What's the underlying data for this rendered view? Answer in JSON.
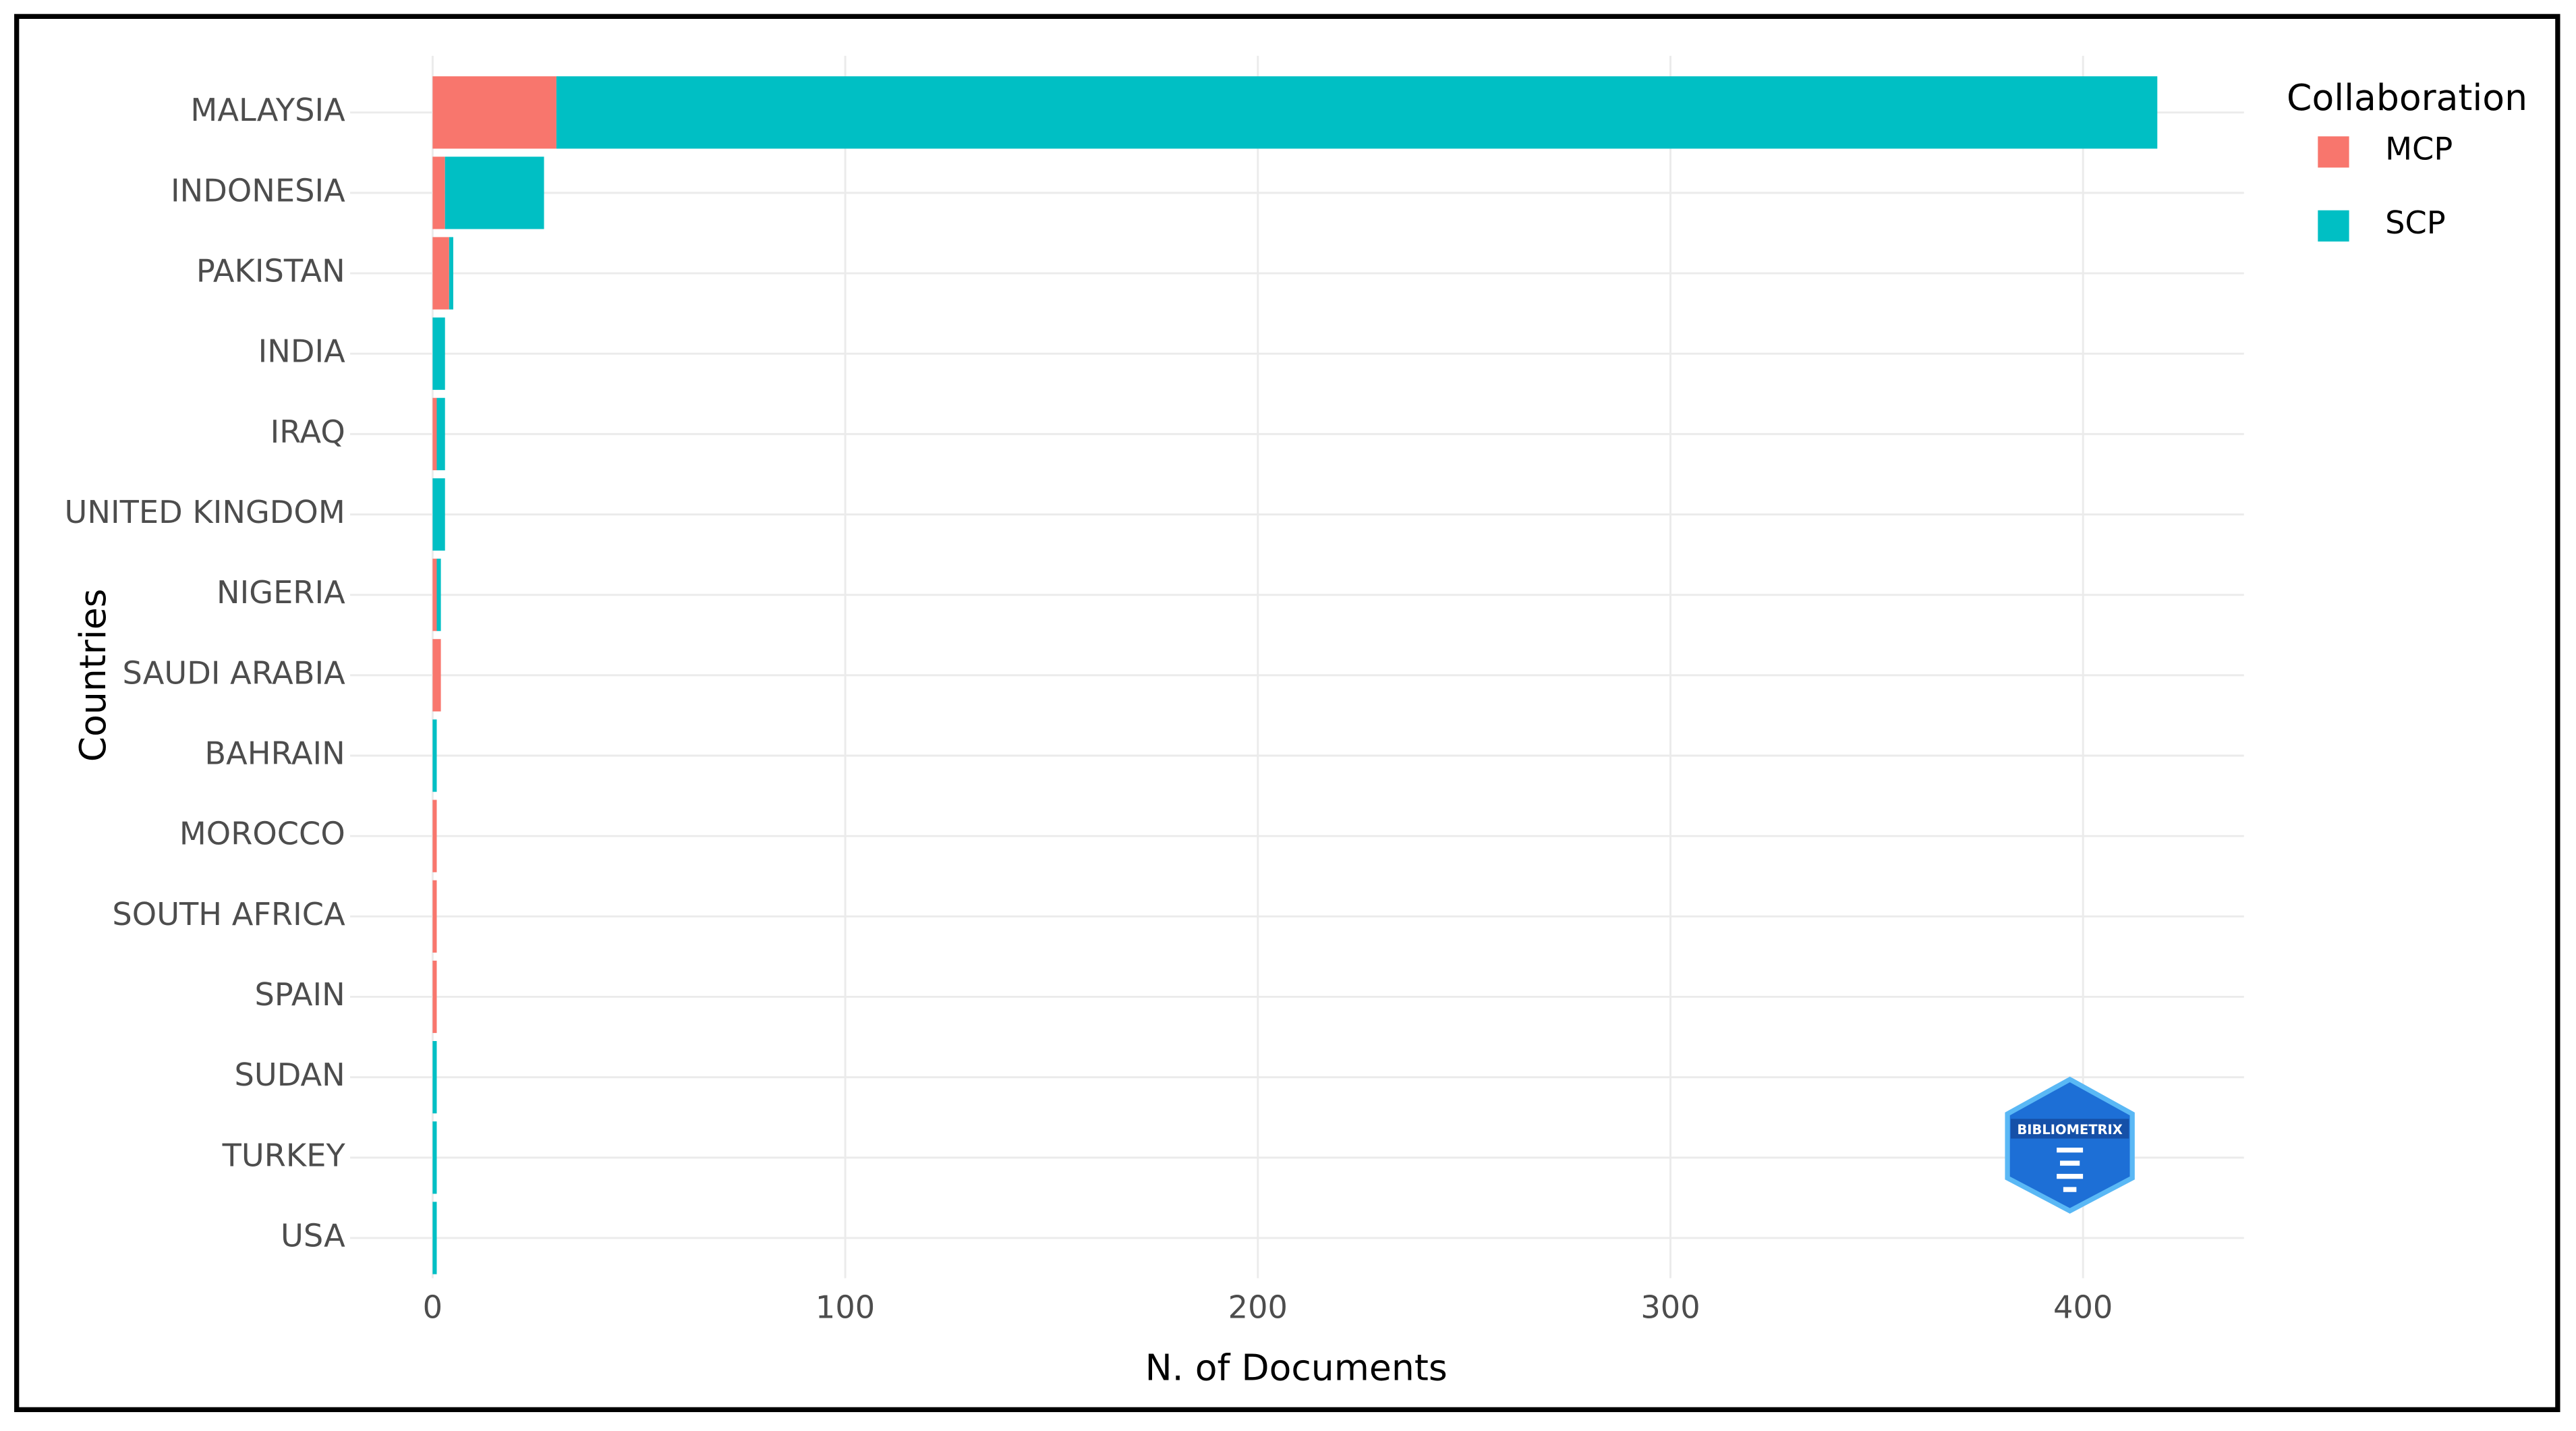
{
  "chart_data": {
    "type": "stacked_barh",
    "xlabel": "N. of Documents",
    "ylabel": "Countries",
    "legend_title": "Collaboration",
    "legend": "right",
    "grid": true,
    "logo_text": "BIBLIOMETRIX",
    "categories": [
      "MALAYSIA",
      "INDONESIA",
      "PAKISTAN",
      "INDIA",
      "IRAQ",
      "UNITED KINGDOM",
      "NIGERIA",
      "SAUDI ARABIA",
      "BAHRAIN",
      "MOROCCO",
      "SOUTH AFRICA",
      "SPAIN",
      "SUDAN",
      "TURKEY",
      "USA"
    ],
    "series": [
      {
        "name": "MCP",
        "color": "#F8766D",
        "values": [
          30,
          3,
          4,
          0,
          1,
          0,
          1,
          2,
          0,
          1,
          1,
          1,
          0,
          0,
          0
        ]
      },
      {
        "name": "SCP",
        "color": "#00BFC4",
        "values": [
          388,
          24,
          1,
          3,
          2,
          3,
          1,
          0,
          1,
          0,
          0,
          0,
          1,
          1,
          1
        ]
      }
    ],
    "xlim": [
      -20,
      439
    ],
    "xticks": [
      0,
      100,
      200,
      300,
      400
    ]
  }
}
